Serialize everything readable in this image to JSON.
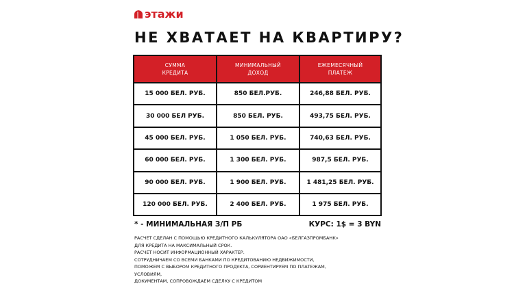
{
  "brand": {
    "name": "этажи",
    "color": "#d32027"
  },
  "title": "НЕ ХВАТАЕТ НА КВАРТИРУ?",
  "table": {
    "headers": [
      [
        "СУММА",
        "КРЕДИТА"
      ],
      [
        "МИНИМАЛЬНЫЙ",
        "ДОХОД"
      ],
      [
        "ЕЖЕМЕСЯЧНЫЙ",
        "ПЛАТЕЖ"
      ]
    ],
    "rows": [
      [
        "15 000 БЕЛ. РУБ.",
        "850 БЕЛ.РУБ.",
        "246,88 БЕЛ. РУБ."
      ],
      [
        "30 000 БЕЛ РУБ.",
        "850 БЕЛ. РУБ.",
        "493,75 БЕЛ. РУБ."
      ],
      [
        "45 000 БЕЛ. РУБ.",
        "1 050 БЕЛ. РУБ.",
        "740,63 БЕЛ. РУБ."
      ],
      [
        "60 000 БЕЛ. РУБ.",
        "1 300 БЕЛ. РУБ.",
        "987,5 БЕЛ. РУБ."
      ],
      [
        "90 000 БЕЛ. РУБ.",
        "1 900 БЕЛ. РУБ.",
        "1 481,25 БЕЛ. РУБ."
      ],
      [
        "120 000 БЕЛ. РУБ.",
        "2 400 БЕЛ. РУБ.",
        "1 975 БЕЛ. РУБ."
      ]
    ]
  },
  "footnote": "* - МИНИМАЛЬНАЯ З/П РБ",
  "rate": "КУРС: 1$ = 3 BYN",
  "description": [
    "РАСЧЕТ СДЕЛАН С ПОМОЩЬЮ КРЕДИТНОГО КАЛЬКУЛЯТОРА ОАО «БЕЛГАЗПРОМБАНК»",
    "ДЛЯ КРЕДИТА  НА МАКСИМАЛЬНЫЙ СРОК.",
    "РАСЧЕТ НОСИТ ИНФОРМАЦИОННЫЙ ХАРАКТЕР.",
    "СОТРУДНИЧАЕМ СО ВСЕМИ БАНКАМИ ПО КРЕДИТОВАНИЮ НЕДВИЖИМОСТИ,",
    "ПОМОЖЕМ С ВЫБОРОМ КРЕДИТНОГО ПРОДУКТА, СОРИЕНТИРУЕМ ПО ПЛАТЕЖАМ,",
    "УСЛОВИЯМ,",
    "ДОКУМЕНТАМ, СОПРОВОЖДАЕМ СДЕЛКУ С КРЕДИТОМ"
  ]
}
